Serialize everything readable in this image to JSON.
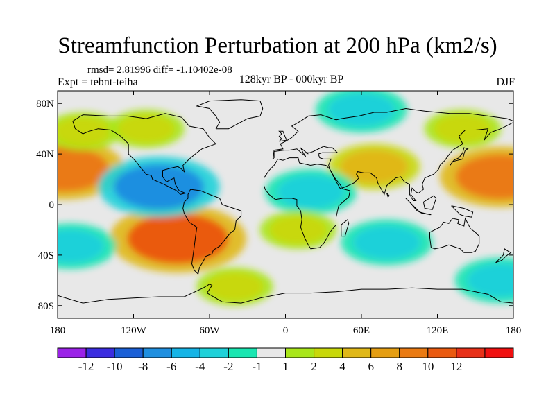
{
  "header": {
    "title": "Streamfunction Perturbation at 200 hPa (km2/s)",
    "stats": "rmsd= 2.81996 diff= -1.10402e-08",
    "experiment": "Expt = tebnt-teiha",
    "period": "128kyr BP - 000kyr BP",
    "season": "DJF"
  },
  "chart_data": {
    "type": "heatmap",
    "title": "Streamfunction Perturbation at 200 hPa (km2/s)",
    "units": "km2/s",
    "projection": "cylindrical equidistant",
    "lon_range": [
      -180,
      180
    ],
    "lat_range": [
      -90,
      90
    ],
    "xticks": [
      {
        "value": -180,
        "label": "180"
      },
      {
        "value": -120,
        "label": "120W"
      },
      {
        "value": -60,
        "label": "60W"
      },
      {
        "value": 0,
        "label": "0"
      },
      {
        "value": 60,
        "label": "60E"
      },
      {
        "value": 120,
        "label": "120E"
      },
      {
        "value": 180,
        "label": "180"
      }
    ],
    "yticks": [
      {
        "value": 80,
        "label": "80N"
      },
      {
        "value": 40,
        "label": "40N"
      },
      {
        "value": 0,
        "label": "0"
      },
      {
        "value": -40,
        "label": "40S"
      },
      {
        "value": -80,
        "label": "80S"
      }
    ],
    "colorbar": {
      "colors": [
        "#9b22e8",
        "#3b2de0",
        "#1a5fd6",
        "#1f8fe0",
        "#15b4e6",
        "#1ed1d9",
        "#19e6b1",
        "#e8e8e8",
        "#a9e61a",
        "#c8d80a",
        "#e0b818",
        "#e59e12",
        "#ea7a12",
        "#ea5a10",
        "#e83018",
        "#f01010"
      ],
      "labels": [
        "-12",
        "-10",
        "-8",
        "-6",
        "-4",
        "-2",
        "-1",
        "1",
        "2",
        "4",
        "6",
        "8",
        "10",
        "12"
      ]
    },
    "anomaly_features": [
      {
        "region": "Central-east Pacific 30N",
        "lon": -175,
        "lat": 28,
        "value": 8
      },
      {
        "region": "Western Pacific 20N",
        "lon": 170,
        "lat": 22,
        "value": 8
      },
      {
        "region": "South-east Pacific / South America 25S",
        "lon": -85,
        "lat": -27,
        "value": 10
      },
      {
        "region": "Eastern Pacific / Central America 10N",
        "lon": -100,
        "lat": 14,
        "value": -8
      },
      {
        "region": "North Pacific 55N",
        "lon": -160,
        "lat": 58,
        "value": 2
      },
      {
        "region": "North America 60N",
        "lon": -110,
        "lat": 60,
        "value": 2
      },
      {
        "region": "Arctic Eurasia 75N",
        "lon": 60,
        "lat": 75,
        "value": -4
      },
      {
        "region": "Eastern Siberia 60N",
        "lon": 140,
        "lat": 60,
        "value": 2
      },
      {
        "region": "Middle East / Asia 30N",
        "lon": 70,
        "lat": 30,
        "value": 4
      },
      {
        "region": "North Africa 10N",
        "lon": 20,
        "lat": 10,
        "value": -4
      },
      {
        "region": "South Atlantic / Africa 25S",
        "lon": 10,
        "lat": -20,
        "value": 2
      },
      {
        "region": "Indian Ocean 30S",
        "lon": 80,
        "lat": -30,
        "value": -4
      },
      {
        "region": "South-west Pacific 35S",
        "lon": -170,
        "lat": -33,
        "value": -4
      },
      {
        "region": "Southern Ocean 60S",
        "lon": -40,
        "lat": -65,
        "value": 2
      },
      {
        "region": "South-west Pacific 60S",
        "lon": 170,
        "lat": -60,
        "value": -4
      }
    ]
  }
}
